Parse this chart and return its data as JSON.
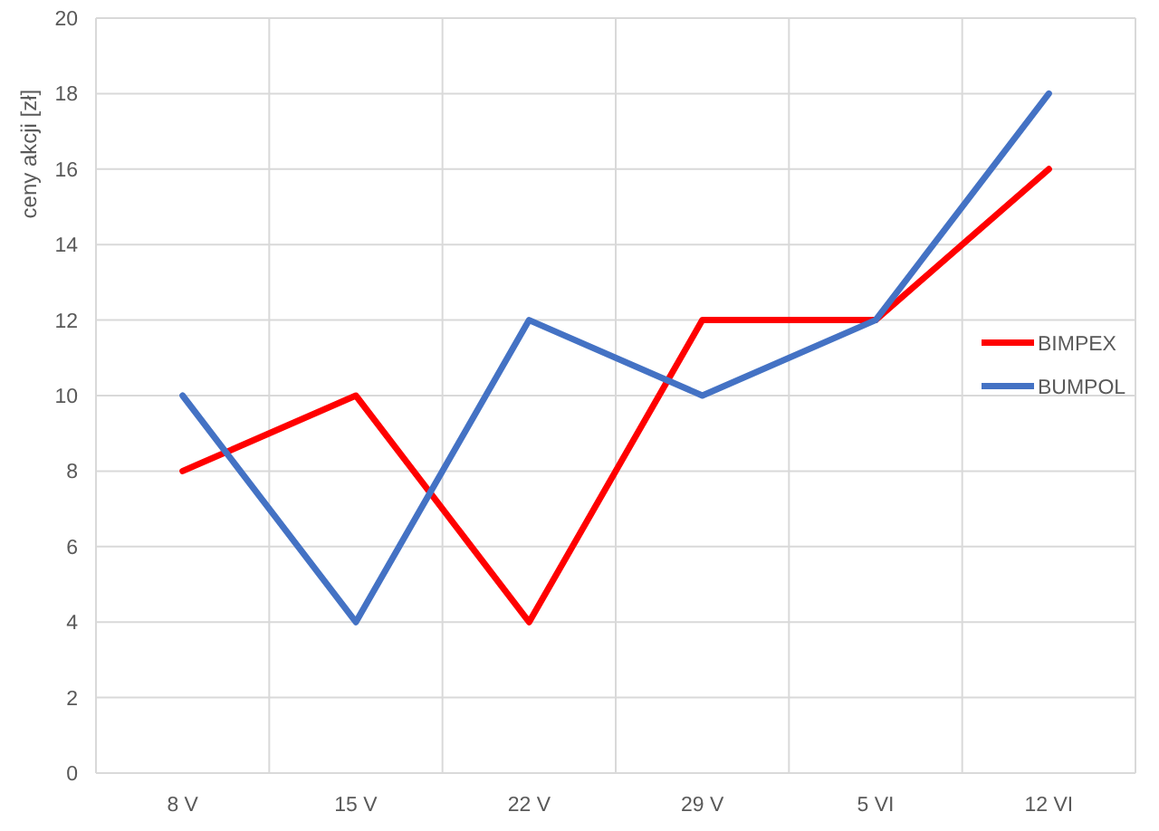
{
  "chart_data": {
    "type": "line",
    "ylabel": "ceny akcji [zł]",
    "categories": [
      "8 V",
      "15 V",
      "22 V",
      "29 V",
      "5 VI",
      "12 VI"
    ],
    "series": [
      {
        "name": "BIMPEX",
        "color": "#ff0000",
        "values": [
          8,
          10,
          4,
          12,
          12,
          16
        ]
      },
      {
        "name": "BUMPOL",
        "color": "#4472c4",
        "values": [
          10,
          4,
          12,
          10,
          12,
          18
        ]
      }
    ],
    "ylim": [
      0,
      20
    ],
    "yticks": [
      0,
      2,
      4,
      6,
      8,
      10,
      12,
      14,
      16,
      18,
      20
    ],
    "grid": true,
    "legend": "right",
    "marker": "none",
    "line_style": "solid"
  }
}
